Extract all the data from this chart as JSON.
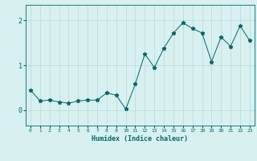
{
  "xlabel": "Humidex (Indice chaleur)",
  "x": [
    0,
    1,
    2,
    3,
    4,
    5,
    6,
    7,
    8,
    9,
    10,
    11,
    12,
    13,
    14,
    15,
    16,
    17,
    18,
    19,
    20,
    21,
    22,
    23
  ],
  "y": [
    0.45,
    0.2,
    0.22,
    0.18,
    0.15,
    0.2,
    0.22,
    0.22,
    0.38,
    0.33,
    0.02,
    0.58,
    1.25,
    0.95,
    1.38,
    1.72,
    1.95,
    1.82,
    1.72,
    1.08,
    1.63,
    1.42,
    1.88,
    1.55
  ],
  "line_color": "#006868",
  "marker": "*",
  "marker_size": 3.5,
  "bg_color": "#d8f0f0",
  "grid_color": "#b8d8d8",
  "tick_color": "#006868",
  "label_color": "#006868",
  "yticks": [
    0,
    1,
    2
  ],
  "ylim": [
    -0.35,
    2.35
  ],
  "xlim": [
    -0.5,
    23.5
  ]
}
